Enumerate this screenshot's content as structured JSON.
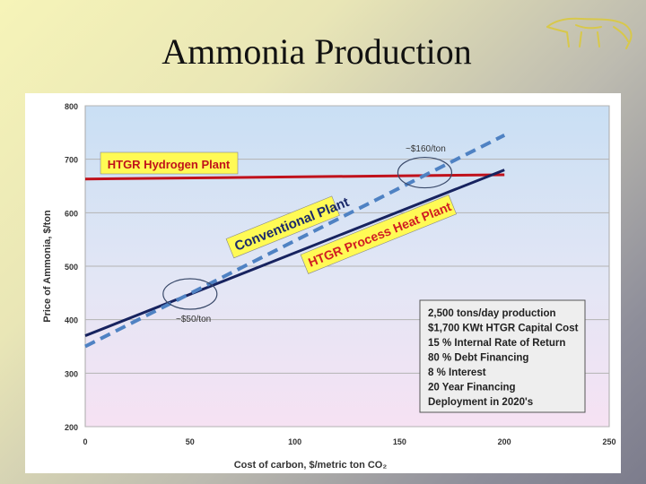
{
  "slide": {
    "title": "Ammonia Production",
    "logo_icon": "anteater-logo-icon"
  },
  "chart_data": {
    "type": "line",
    "xlabel": "Cost of carbon, $/metric ton CO₂",
    "ylabel": "Price of Ammonia, $/ton",
    "xlim": [
      0,
      250
    ],
    "ylim": [
      200,
      800
    ],
    "xticks": [
      0,
      50,
      100,
      150,
      200,
      250
    ],
    "yticks": [
      200,
      300,
      400,
      500,
      600,
      700,
      800
    ],
    "grid": true,
    "background": "gradient light-blue to light-pink",
    "series": [
      {
        "name": "HTGR Hydrogen Plant",
        "color": "#c0111b",
        "style": "solid",
        "x": [
          0,
          200
        ],
        "y": [
          663,
          671
        ]
      },
      {
        "name": "Conventional Plant",
        "color": "#17235f",
        "style": "solid",
        "x": [
          0,
          200
        ],
        "y": [
          370,
          680
        ]
      },
      {
        "name": "HTGR Process Heat Plant",
        "color": "#4f82c3",
        "style": "dashed",
        "x": [
          0,
          200
        ],
        "y": [
          350,
          745
        ]
      }
    ],
    "annotations": [
      {
        "id": "htgr-hydrogen",
        "text": "HTGR Hydrogen Plant",
        "color": "#c0111b"
      },
      {
        "id": "conventional",
        "text": "Conventional  Plant",
        "color": "#1b2a6b"
      },
      {
        "id": "process-heat",
        "text": "HTGR Process Heat Plant",
        "color": "#d01c22"
      },
      {
        "id": "cross-high",
        "text": "~$160/ton"
      },
      {
        "id": "cross-low",
        "text": "~$50/ton"
      }
    ],
    "callouts": [
      {
        "label": "~$160/ton",
        "x": 162,
        "y": 675
      },
      {
        "label": "~$50/ton",
        "x": 50,
        "y": 448
      }
    ],
    "assumptions": [
      "2,500 tons/day production",
      "$1,700 KWt HTGR Capital Cost",
      "15 % Internal Rate of Return",
      "80 % Debt  Financing",
      "8 % Interest",
      "20 Year Financing",
      "Deployment in 2020's"
    ]
  }
}
